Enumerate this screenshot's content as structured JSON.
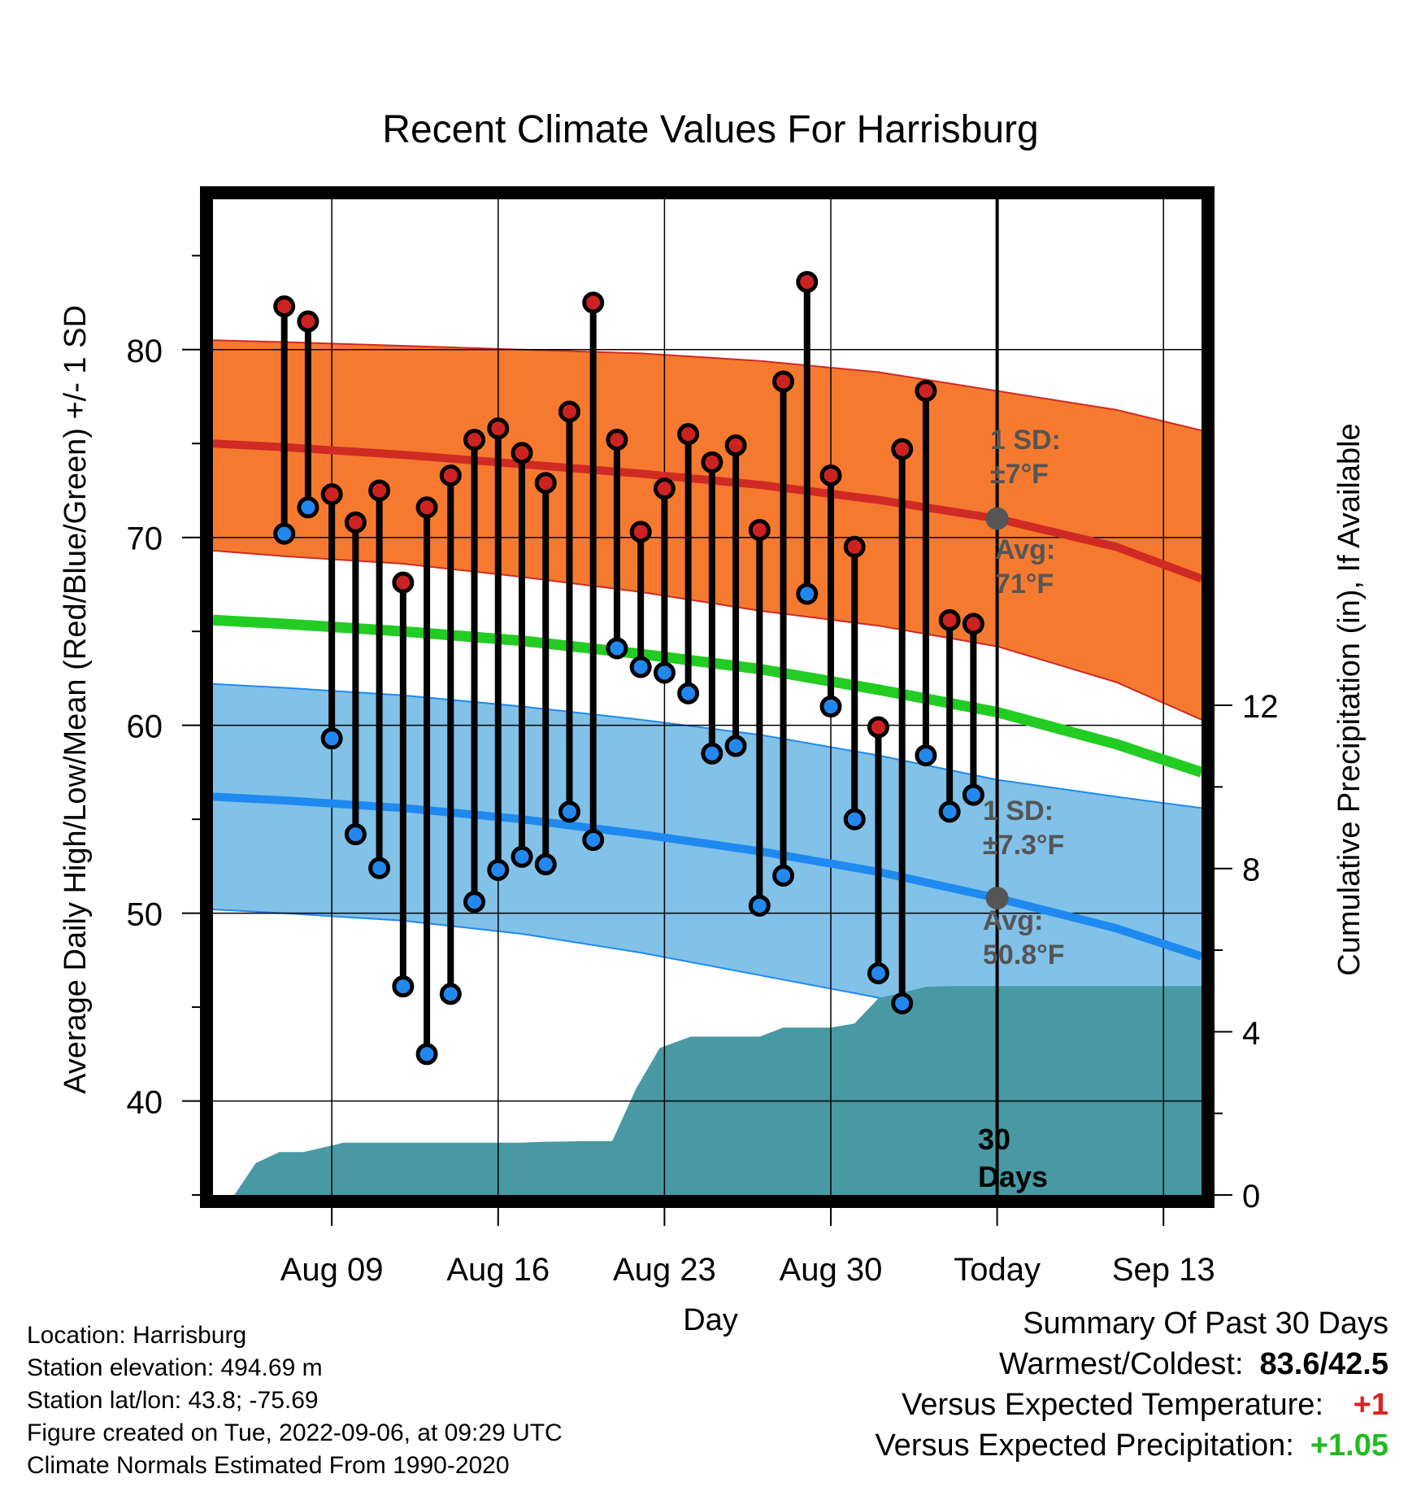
{
  "chart_data": {
    "type": "line",
    "title": "Recent Climate Values For Harrisburg",
    "xlabel": "Day",
    "ylabel": "Average Daily High/Low/Mean (Red/Blue/Green) +/- 1 SD",
    "y2label": "Cumulative Precipitation (in), If Available",
    "x_tick_labels": [
      "Aug 09",
      "Aug 16",
      "Aug 23",
      "Aug 30",
      "Today",
      "Sep 13"
    ],
    "y_ticks": [
      40,
      50,
      60,
      70,
      80
    ],
    "y2_ticks": [
      0,
      4,
      8,
      12
    ],
    "ylim": [
      35,
      88
    ],
    "y2lim": [
      0,
      24.4
    ],
    "xlim_day_offset": [
      -33,
      8.6
    ],
    "today_line_label": "30 Days",
    "high_annotation": {
      "sd": "1 SD:",
      "sd_value": "±7°F",
      "avg": "Avg:",
      "avg_value": "71°F"
    },
    "low_annotation": {
      "sd": "1 SD:",
      "sd_value": "±7.3°F",
      "avg": "Avg:",
      "avg_value": "50.8°F"
    },
    "colors": {
      "high_band": "#f57a2f",
      "high_line": "#d02a24",
      "low_band": "#82c1e8",
      "low_line": "#1e8aef",
      "mean_line": "#22cc22",
      "precip": "#4899a3",
      "high_dot": "#cc2222",
      "low_dot": "#2288ee",
      "today_dot": "#555555"
    },
    "normals_day_offset": [
      -33,
      -30,
      -25,
      -20,
      -15,
      -10,
      -5,
      0,
      5,
      8.6
    ],
    "normal_high": [
      75.0,
      74.8,
      74.4,
      73.9,
      73.4,
      72.8,
      72.0,
      71.0,
      69.5,
      67.8
    ],
    "normal_high_sd_upper": [
      80.5,
      80.4,
      80.2,
      80.0,
      79.8,
      79.4,
      78.8,
      77.8,
      76.8,
      75.7
    ],
    "normal_high_sd_lower": [
      69.3,
      69.0,
      68.6,
      67.9,
      67.1,
      66.1,
      65.3,
      64.2,
      62.3,
      60.3
    ],
    "normal_mean": [
      65.6,
      65.4,
      65.0,
      64.5,
      63.8,
      63.0,
      61.9,
      60.7,
      59.0,
      57.5
    ],
    "normal_low": [
      56.2,
      56.0,
      55.6,
      55.0,
      54.2,
      53.3,
      52.2,
      50.8,
      49.2,
      47.7
    ],
    "normal_low_sd_upper": [
      62.2,
      62.0,
      61.6,
      61.0,
      60.3,
      59.5,
      58.4,
      57.1,
      56.2,
      55.6
    ],
    "normal_low_sd_lower": [
      50.2,
      50.0,
      49.6,
      48.9,
      47.9,
      46.7,
      45.5,
      44.2,
      42.6,
      41.0
    ],
    "obs_day_offset": [
      -30,
      -29,
      -28,
      -27,
      -26,
      -25,
      -24,
      -23,
      -22,
      -21,
      -20,
      -19,
      -18,
      -17,
      -16,
      -15,
      -14,
      -13,
      -12,
      -11,
      -10,
      -9,
      -8,
      -7,
      -6,
      -5,
      -4,
      -3,
      -2,
      -1
    ],
    "daily_high": [
      82.3,
      81.5,
      72.3,
      70.8,
      72.5,
      67.6,
      71.6,
      73.3,
      75.2,
      75.8,
      74.5,
      72.9,
      76.7,
      82.5,
      75.2,
      70.3,
      72.6,
      75.5,
      74.0,
      74.9,
      70.4,
      78.3,
      83.6,
      73.3,
      69.5,
      59.9,
      74.7,
      77.8,
      65.6,
      65.4
    ],
    "daily_low": [
      70.2,
      71.6,
      59.3,
      54.2,
      52.4,
      46.1,
      42.5,
      45.7,
      50.6,
      52.3,
      53.0,
      52.6,
      55.4,
      53.9,
      64.1,
      63.1,
      62.8,
      61.7,
      58.5,
      58.9,
      50.4,
      52.0,
      67.0,
      61.0,
      55.0,
      46.8,
      45.2,
      58.4,
      55.4,
      56.3
    ],
    "precip_day_offset": [
      -32.1,
      -31.2,
      -30.2,
      -29.2,
      -27.5,
      -26.5,
      -20.1,
      -19.2,
      -17.1,
      -16.2,
      -15.2,
      -14.2,
      -12.9,
      -12.1,
      -10.0,
      -9.0,
      -8.0,
      -7.0,
      -6.0,
      -5.0,
      -3.0,
      -2.0,
      -1.0,
      8.6
    ],
    "cumulative_precip": [
      0.0,
      0.78,
      1.05,
      1.05,
      1.28,
      1.28,
      1.28,
      1.3,
      1.32,
      1.32,
      2.6,
      3.6,
      3.88,
      3.88,
      3.88,
      4.1,
      4.1,
      4.1,
      4.2,
      4.82,
      5.1,
      5.12,
      5.12,
      5.12
    ],
    "precip_start_offset": -32.1
  },
  "info": [
    "Location: Harrisburg",
    "Station elevation: 494.69 m",
    "Station lat/lon: 43.8; -75.69",
    "Figure created on Tue, 2022-09-06, at 09:29 UTC",
    "Climate Normals Estimated From 1990-2020"
  ],
  "summary": {
    "title": "Summary Of Past 30 Days",
    "warm_cold_label": "Warmest/Coldest:",
    "warm_cold_value": "83.6/42.5",
    "temp_label": "Versus Expected Temperature:",
    "temp_value": "+1",
    "temp_color": "#dd2222",
    "precip_label": "Versus Expected Precipitation:",
    "precip_value": "+1.05",
    "precip_color": "#22bb22"
  }
}
